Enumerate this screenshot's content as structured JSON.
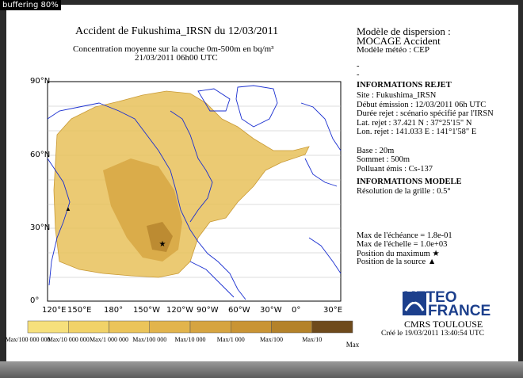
{
  "overlay": "buffering 80%",
  "header": {
    "title": "Accident de Fukushima_IRSN du 12/03/2011",
    "subtitle": "Concentration moyenne sur la couche 0m-500m en bq/m³",
    "date": "21/03/2011 06h00 UTC"
  },
  "model": {
    "title": "Modèle de dispersion :",
    "name": "MOCAGE Accident",
    "weather": "Modèle météo : CEP",
    "dashes": [
      "-",
      "-"
    ]
  },
  "release": {
    "heading": "INFORMATIONS REJET",
    "lines": [
      "Site : Fukushima_IRSN",
      "Début émission : 12/03/2011 06h UTC",
      "Durée rejet : scénario spécifié par l'IRSN",
      "Lat. rejet : 37.421 N : 37°25'15\" N",
      "Lon. rejet : 141.033 E : 141°1'58\" E",
      "",
      "Base : 20m",
      "Sommet : 500m",
      "Polluant émis : Cs-137"
    ]
  },
  "model_info": {
    "heading": "INFORMATIONS MODELE",
    "resolution": "Résolution de la grille : 0.5°"
  },
  "stats": [
    "Max de l'échéance = 1.8e-01",
    "Max de l'échelle = 1.0e+03",
    "Position du maximum ★",
    "Position de la source ▲"
  ],
  "axes": {
    "lat": [
      "90°N",
      "60°N",
      "30°N",
      "0°"
    ],
    "lon": [
      "120°E",
      "150°E",
      "180°",
      "150°W",
      "120°W",
      "90°W",
      "60°W",
      "30°W",
      "0°",
      "30°E"
    ]
  },
  "legend": {
    "labels": [
      "Max/100 000 000",
      "Max/10 000 000",
      "Max/1 000 000",
      "Max/100 000",
      "Max/10 000",
      "Max/1 000",
      "Max/100",
      "Max/10",
      "Max"
    ],
    "colors": [
      "#f6e07c",
      "#f1d268",
      "#ebc45a",
      "#e2b44c",
      "#d6a440",
      "#c99434",
      "#b4822a",
      "#6e4a1c"
    ]
  },
  "footer": {
    "logo_line1": "METEO",
    "logo_line2": "FRANCE",
    "center": "CMRS TOULOUSE",
    "created": "Créé le 19/03/2011 13:40:54 UTC"
  }
}
